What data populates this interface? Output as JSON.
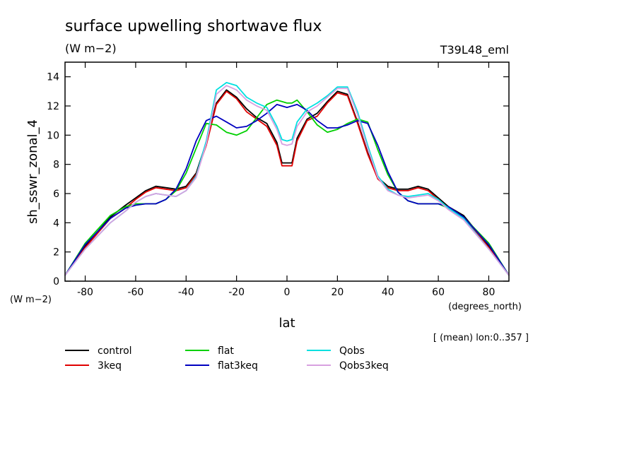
{
  "chart_data": {
    "type": "line",
    "title": "surface upwelling shortwave flux",
    "units_top": "(W m−2)",
    "model_label": "T39L48_eml",
    "ylabel": "sh_sswr_zonal_4",
    "yunits": "(W m−2)",
    "xlabel": "lat",
    "xunits": "(degrees_north)",
    "note": "[ (mean) lon:0..357 ]",
    "xlim": [
      -88,
      88
    ],
    "ylim": [
      0,
      15
    ],
    "xticks": [
      -80,
      -60,
      -40,
      -20,
      0,
      20,
      40,
      60,
      80
    ],
    "yticks": [
      0,
      2,
      4,
      6,
      8,
      10,
      12,
      14
    ],
    "grid": false,
    "legend_position": "bottom",
    "x": [
      -88,
      -80,
      -70,
      -64,
      -60,
      -56,
      -52,
      -48,
      -44,
      -40,
      -36,
      -32,
      -28,
      -24,
      -20,
      -16,
      -12,
      -8,
      -4,
      -2,
      0,
      2,
      4,
      8,
      12,
      16,
      20,
      24,
      28,
      32,
      36,
      40,
      44,
      48,
      52,
      56,
      60,
      64,
      70,
      80,
      88
    ],
    "series": [
      {
        "name": "control",
        "color": "#000000",
        "values": [
          0.4,
          2.4,
          4.4,
          5.2,
          5.7,
          6.2,
          6.5,
          6.4,
          6.3,
          6.5,
          7.4,
          9.5,
          12.2,
          13.1,
          12.6,
          11.8,
          11.2,
          10.8,
          9.5,
          8.1,
          8.1,
          8.1,
          9.8,
          11.1,
          11.5,
          12.3,
          13.0,
          12.8,
          10.9,
          8.8,
          7.1,
          6.5,
          6.3,
          6.3,
          6.5,
          6.3,
          5.7,
          5.1,
          4.5,
          2.4,
          0.4
        ]
      },
      {
        "name": "3keq",
        "color": "#e00000",
        "values": [
          0.4,
          2.3,
          4.3,
          5.0,
          5.6,
          6.1,
          6.4,
          6.3,
          6.2,
          6.4,
          7.3,
          9.3,
          12.1,
          13.0,
          12.5,
          11.6,
          11.1,
          10.6,
          9.3,
          7.9,
          7.9,
          7.9,
          9.6,
          11.0,
          11.3,
          12.2,
          12.9,
          12.7,
          10.8,
          8.7,
          7.0,
          6.4,
          6.2,
          6.2,
          6.4,
          6.2,
          5.6,
          5.0,
          4.4,
          2.3,
          0.4
        ]
      },
      {
        "name": "flat",
        "color": "#00d000",
        "values": [
          0.4,
          2.6,
          4.5,
          5.1,
          5.3,
          5.3,
          5.3,
          5.6,
          6.2,
          7.4,
          9.1,
          10.8,
          10.7,
          10.2,
          10.0,
          10.3,
          11.2,
          12.1,
          12.4,
          12.3,
          12.2,
          12.2,
          12.4,
          11.6,
          10.7,
          10.2,
          10.4,
          10.8,
          11.1,
          10.9,
          9.0,
          7.3,
          6.1,
          5.5,
          5.3,
          5.3,
          5.3,
          5.0,
          4.4,
          2.6,
          0.4
        ]
      },
      {
        "name": "flat3keq",
        "color": "#0000c0",
        "values": [
          0.4,
          2.5,
          4.3,
          5.0,
          5.2,
          5.3,
          5.3,
          5.6,
          6.3,
          7.7,
          9.6,
          11.0,
          11.3,
          10.9,
          10.5,
          10.6,
          11.0,
          11.5,
          12.1,
          12.0,
          11.9,
          12.0,
          12.1,
          11.7,
          11.0,
          10.5,
          10.5,
          10.7,
          11.0,
          10.8,
          9.3,
          7.5,
          6.1,
          5.5,
          5.3,
          5.3,
          5.3,
          5.1,
          4.4,
          2.5,
          0.4
        ]
      },
      {
        "name": "Qobs",
        "color": "#00e0e0",
        "values": [
          0.4,
          2.2,
          4.0,
          4.8,
          5.4,
          5.8,
          6.0,
          5.9,
          5.8,
          6.2,
          7.2,
          9.6,
          13.1,
          13.6,
          13.4,
          12.6,
          12.2,
          11.9,
          10.6,
          9.7,
          9.6,
          9.7,
          10.9,
          11.8,
          12.2,
          12.7,
          13.3,
          13.3,
          11.6,
          9.3,
          7.2,
          6.3,
          5.9,
          5.8,
          5.9,
          6.0,
          5.6,
          5.0,
          4.3,
          2.2,
          0.4
        ]
      },
      {
        "name": "Qobs3keq",
        "color": "#d8a0e0",
        "values": [
          0.4,
          2.2,
          4.0,
          4.8,
          5.4,
          5.8,
          6.0,
          5.9,
          5.8,
          6.2,
          7.1,
          9.4,
          12.8,
          13.4,
          13.1,
          12.4,
          12.0,
          11.7,
          10.4,
          9.4,
          9.3,
          9.4,
          10.6,
          11.6,
          12.0,
          12.6,
          13.2,
          13.2,
          11.4,
          9.1,
          7.1,
          6.2,
          5.9,
          5.7,
          5.8,
          5.9,
          5.5,
          4.9,
          4.2,
          2.2,
          0.4
        ]
      }
    ]
  }
}
